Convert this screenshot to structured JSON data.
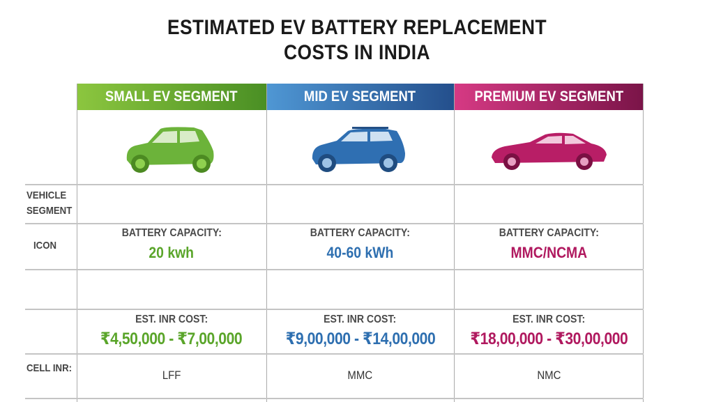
{
  "title": {
    "line1": "ESTIMATED EV BATTERY REPLACEMENT",
    "line2": "COSTS IN INDIA"
  },
  "row_labels": {
    "vehicle_segment_1": "VEHICLE",
    "vehicle_segment_2": "SEGMENT",
    "icon": "ICON",
    "cell_inr": "CELL INR:"
  },
  "segments": [
    {
      "header": "SMALL EV SEGMENT",
      "color": "#5aa52a",
      "header_gradient": [
        "#8cc63f",
        "#4a8f24"
      ],
      "car_icon": "hatchback-car-icon",
      "capacity_label": "BATTERY CAPACITY:",
      "capacity": "20 kwh",
      "cost_label": "EST. INR COST:",
      "cost": "₹4,50,000 - ₹7,00,000",
      "cell": "LFF"
    },
    {
      "header": "MID EV SEGMENT",
      "color": "#2e6fb0",
      "header_gradient": [
        "#4f97d4",
        "#244f8c"
      ],
      "car_icon": "suv-car-icon",
      "capacity_label": "BATTERY CAPACITY:",
      "capacity": "40-60 kWh",
      "cost_label": "EST. INR COST:",
      "cost": "₹9,00,000 - ₹14,00,000",
      "cell": "MMC"
    },
    {
      "header": "PREMIUM EV SEGMENT",
      "color": "#b0195f",
      "header_gradient": [
        "#d63a84",
        "#7a1448"
      ],
      "car_icon": "sedan-car-icon",
      "capacity_label": "BATTERY CAPACITY:",
      "capacity": "MMC/NCMA",
      "cost_label": "EST. INR COST:",
      "cost": "₹18,00,000 - ₹30,00,000",
      "cell": "NMC"
    }
  ]
}
